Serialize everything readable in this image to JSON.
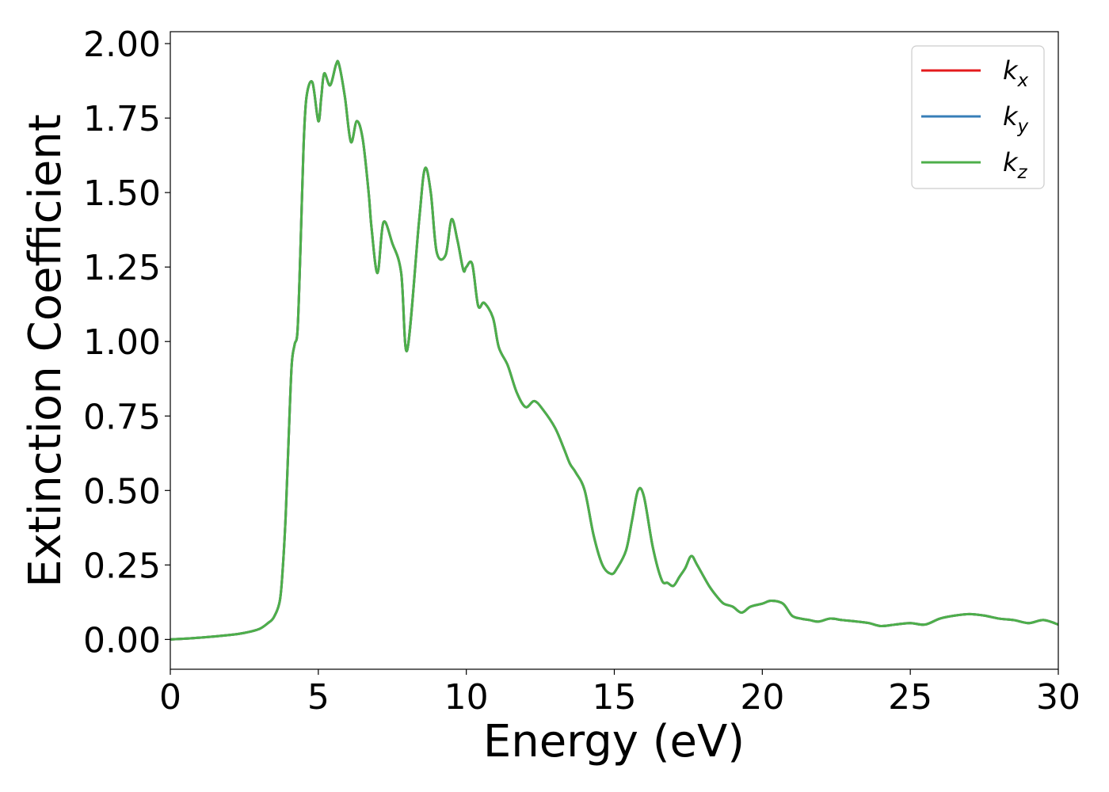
{
  "chart_data": {
    "type": "line",
    "title": "",
    "xlabel": "Energy (eV)",
    "ylabel": "Extinction Coefficient",
    "xlim": [
      0,
      30
    ],
    "ylim": [
      -0.1,
      2.04
    ],
    "xticks": [
      0,
      5,
      10,
      15,
      20,
      25,
      30
    ],
    "xtick_labels": [
      "0",
      "5",
      "10",
      "15",
      "20",
      "25",
      "30"
    ],
    "yticks": [
      0.0,
      0.25,
      0.5,
      0.75,
      1.0,
      1.25,
      1.5,
      1.75,
      2.0
    ],
    "ytick_labels": [
      "0.00",
      "0.25",
      "0.50",
      "0.75",
      "1.00",
      "1.25",
      "1.50",
      "1.75",
      "2.00"
    ],
    "grid": false,
    "legend_position": "top-right",
    "x": [
      0,
      1,
      2,
      2.5,
      3,
      3.3,
      3.5,
      3.7,
      3.8,
      3.9,
      4.0,
      4.1,
      4.2,
      4.3,
      4.4,
      4.5,
      4.6,
      4.8,
      5.0,
      5.1,
      5.2,
      5.4,
      5.6,
      5.7,
      5.9,
      6.1,
      6.3,
      6.5,
      6.7,
      6.8,
      7.0,
      7.2,
      7.5,
      7.8,
      8.0,
      8.4,
      8.6,
      8.8,
      9.0,
      9.3,
      9.5,
      9.7,
      9.9,
      10.0,
      10.2,
      10.4,
      10.6,
      10.9,
      11.1,
      11.4,
      11.7,
      12.0,
      12.3,
      12.6,
      13.0,
      13.3,
      13.5,
      13.7,
      14.0,
      14.3,
      14.6,
      14.9,
      15.1,
      15.4,
      15.6,
      15.8,
      16.0,
      16.3,
      16.6,
      16.8,
      17.0,
      17.2,
      17.4,
      17.6,
      17.8,
      18.2,
      18.5,
      18.7,
      19.0,
      19.3,
      19.6,
      20.0,
      20.3,
      20.7,
      21.0,
      21.3,
      21.6,
      21.9,
      22.3,
      22.7,
      23.2,
      23.6,
      24.0,
      24.5,
      25.0,
      25.5,
      26.0,
      26.5,
      27.0,
      27.5,
      28.0,
      28.5,
      29.0,
      29.5,
      30.0
    ],
    "series": [
      {
        "name": "k_x",
        "color": "#e41a1c",
        "values": [
          0.0,
          0.006,
          0.015,
          0.022,
          0.035,
          0.055,
          0.075,
          0.13,
          0.24,
          0.42,
          0.68,
          0.92,
          0.99,
          1.04,
          1.32,
          1.65,
          1.82,
          1.87,
          1.74,
          1.82,
          1.9,
          1.86,
          1.93,
          1.93,
          1.82,
          1.67,
          1.74,
          1.68,
          1.5,
          1.38,
          1.23,
          1.4,
          1.33,
          1.23,
          0.97,
          1.4,
          1.58,
          1.5,
          1.3,
          1.29,
          1.41,
          1.34,
          1.24,
          1.25,
          1.26,
          1.12,
          1.13,
          1.08,
          0.98,
          0.92,
          0.83,
          0.78,
          0.8,
          0.77,
          0.71,
          0.64,
          0.59,
          0.56,
          0.5,
          0.35,
          0.25,
          0.22,
          0.24,
          0.3,
          0.4,
          0.5,
          0.48,
          0.31,
          0.2,
          0.19,
          0.18,
          0.21,
          0.24,
          0.28,
          0.25,
          0.18,
          0.14,
          0.12,
          0.11,
          0.09,
          0.11,
          0.12,
          0.13,
          0.12,
          0.08,
          0.07,
          0.065,
          0.06,
          0.07,
          0.065,
          0.06,
          0.055,
          0.045,
          0.05,
          0.055,
          0.05,
          0.07,
          0.08,
          0.085,
          0.08,
          0.07,
          0.065,
          0.055,
          0.065,
          0.05
        ]
      },
      {
        "name": "k_y",
        "color": "#377eb8",
        "values": [
          0.0,
          0.006,
          0.015,
          0.022,
          0.035,
          0.055,
          0.075,
          0.13,
          0.24,
          0.42,
          0.68,
          0.92,
          0.99,
          1.04,
          1.32,
          1.65,
          1.82,
          1.87,
          1.74,
          1.82,
          1.9,
          1.86,
          1.93,
          1.93,
          1.82,
          1.67,
          1.74,
          1.68,
          1.5,
          1.38,
          1.23,
          1.4,
          1.33,
          1.23,
          0.97,
          1.4,
          1.58,
          1.5,
          1.3,
          1.29,
          1.41,
          1.34,
          1.24,
          1.25,
          1.26,
          1.12,
          1.13,
          1.08,
          0.98,
          0.92,
          0.83,
          0.78,
          0.8,
          0.77,
          0.71,
          0.64,
          0.59,
          0.56,
          0.5,
          0.35,
          0.25,
          0.22,
          0.24,
          0.3,
          0.4,
          0.5,
          0.48,
          0.31,
          0.2,
          0.19,
          0.18,
          0.21,
          0.24,
          0.28,
          0.25,
          0.18,
          0.14,
          0.12,
          0.11,
          0.09,
          0.11,
          0.12,
          0.13,
          0.12,
          0.08,
          0.07,
          0.065,
          0.06,
          0.07,
          0.065,
          0.06,
          0.055,
          0.045,
          0.05,
          0.055,
          0.05,
          0.07,
          0.08,
          0.085,
          0.08,
          0.07,
          0.065,
          0.055,
          0.065,
          0.05
        ]
      },
      {
        "name": "k_z",
        "color": "#4daf4a",
        "values": [
          0.0,
          0.006,
          0.015,
          0.022,
          0.035,
          0.055,
          0.075,
          0.13,
          0.24,
          0.42,
          0.68,
          0.92,
          0.99,
          1.04,
          1.32,
          1.65,
          1.82,
          1.87,
          1.74,
          1.82,
          1.9,
          1.86,
          1.93,
          1.93,
          1.82,
          1.67,
          1.74,
          1.68,
          1.5,
          1.38,
          1.23,
          1.4,
          1.33,
          1.23,
          0.97,
          1.4,
          1.58,
          1.5,
          1.3,
          1.29,
          1.41,
          1.34,
          1.24,
          1.25,
          1.26,
          1.12,
          1.13,
          1.08,
          0.98,
          0.92,
          0.83,
          0.78,
          0.8,
          0.77,
          0.71,
          0.64,
          0.59,
          0.56,
          0.5,
          0.35,
          0.25,
          0.22,
          0.24,
          0.3,
          0.4,
          0.5,
          0.48,
          0.31,
          0.2,
          0.19,
          0.18,
          0.21,
          0.24,
          0.28,
          0.25,
          0.18,
          0.14,
          0.12,
          0.11,
          0.09,
          0.11,
          0.12,
          0.13,
          0.12,
          0.08,
          0.07,
          0.065,
          0.06,
          0.07,
          0.065,
          0.06,
          0.055,
          0.045,
          0.05,
          0.055,
          0.05,
          0.07,
          0.08,
          0.085,
          0.08,
          0.07,
          0.065,
          0.055,
          0.065,
          0.05
        ]
      }
    ],
    "legend": [
      {
        "base": "k",
        "sub": "x"
      },
      {
        "base": "k",
        "sub": "y"
      },
      {
        "base": "k",
        "sub": "z"
      }
    ]
  }
}
